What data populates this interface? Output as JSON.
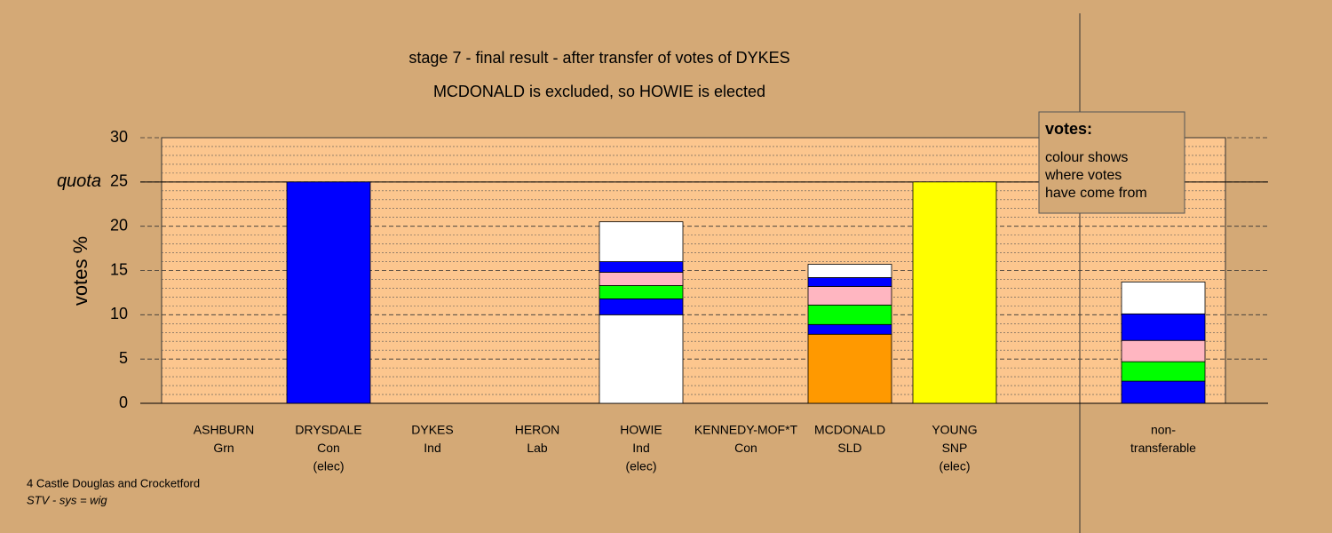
{
  "chart_data": {
    "type": "stacked-bar",
    "title": "stage 7 - final result - after transfer of votes of DYKES",
    "subtitle": "MCDONALD is excluded, so HOWIE is elected",
    "y_label": "votes %",
    "ylim": [
      0,
      30
    ],
    "yticks": [
      0,
      5,
      10,
      15,
      20,
      25,
      30
    ],
    "minor_yticks": [
      1,
      2,
      3,
      4,
      6,
      7,
      8,
      9,
      11,
      12,
      13,
      14,
      16,
      17,
      18,
      19,
      21,
      22,
      23,
      24,
      26,
      27,
      28,
      29
    ],
    "quota": {
      "label": "quota",
      "value": 25
    },
    "legend": {
      "title": "votes:",
      "lines": [
        "colour shows",
        "where votes",
        "have come from"
      ]
    },
    "bars": [
      {
        "label": [
          "ASHBURN",
          "Grn"
        ],
        "segments": []
      },
      {
        "label": [
          "DRYSDALE",
          "Con",
          "(elec)"
        ],
        "segments": [
          {
            "value": 25,
            "color": "#0000ff"
          }
        ]
      },
      {
        "label": [
          "DYKES",
          "Ind"
        ],
        "segments": []
      },
      {
        "label": [
          "HERON",
          "Lab"
        ],
        "segments": []
      },
      {
        "label": [
          "HOWIE",
          "Ind",
          "(elec)"
        ],
        "segments": [
          {
            "value": 10,
            "color": "#ffffff"
          },
          {
            "value": 1.8,
            "color": "#0000ff"
          },
          {
            "value": 1.5,
            "color": "#00ff00"
          },
          {
            "value": 1.5,
            "color": "#ffb6c1"
          },
          {
            "value": 1.2,
            "color": "#0000ff"
          },
          {
            "value": 4.5,
            "color": "#ffffff"
          }
        ]
      },
      {
        "label": [
          "KENNEDY-MOF*T",
          "Con"
        ],
        "segments": []
      },
      {
        "label": [
          "MCDONALD",
          "SLD"
        ],
        "segments": [
          {
            "value": 7.8,
            "color": "#ff9900"
          },
          {
            "value": 1.1,
            "color": "#0000ff"
          },
          {
            "value": 2.2,
            "color": "#00ff00"
          },
          {
            "value": 2.1,
            "color": "#ffb6c1"
          },
          {
            "value": 1.0,
            "color": "#0000ff"
          },
          {
            "value": 1.5,
            "color": "#ffffff"
          }
        ]
      },
      {
        "label": [
          "YOUNG",
          "SNP",
          "(elec)"
        ],
        "segments": [
          {
            "value": 25,
            "color": "#ffff00"
          }
        ]
      },
      {
        "label": [
          "non-",
          "transferable"
        ],
        "segments": [
          {
            "value": 2.5,
            "color": "#0000ff"
          },
          {
            "value": 2.2,
            "color": "#00ff00"
          },
          {
            "value": 2.4,
            "color": "#ffb6c1"
          },
          {
            "value": 3.0,
            "color": "#0000ff"
          },
          {
            "value": 3.6,
            "color": "#ffffff"
          }
        ]
      }
    ],
    "footer": [
      "4 Castle Douglas and Crocketford",
      "STV - sys = wig"
    ]
  }
}
